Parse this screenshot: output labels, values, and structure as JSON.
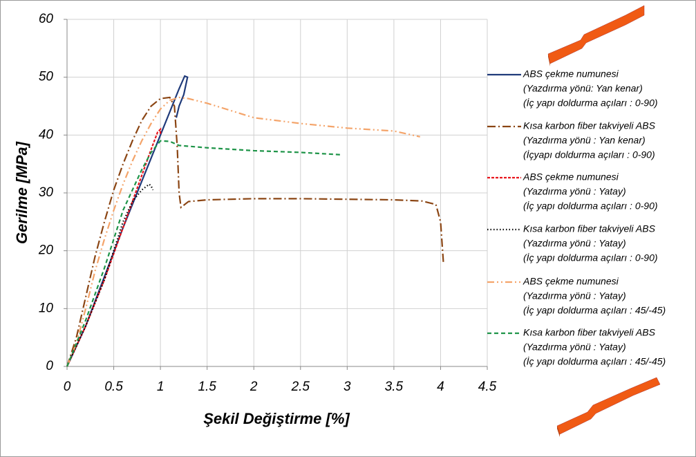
{
  "chart_data": {
    "type": "line",
    "x_label": "Şekil Değiştirme [%]",
    "y_label": "Gerilme  [MPa]",
    "xlim": [
      0,
      4.5
    ],
    "xticks": [
      0,
      0.5,
      1,
      1.5,
      2,
      2.5,
      3,
      3.5,
      4,
      4.5
    ],
    "ylim": [
      0,
      60
    ],
    "yticks": [
      0,
      10,
      20,
      30,
      40,
      50,
      60
    ],
    "grid": true,
    "legend": "right",
    "series": [
      {
        "name": "ABS çekme numunesi",
        "details": [
          "(Yazdırma yönü: Yan kenar)",
          "(İç yapı doldurma açıları : 0-90)"
        ],
        "color": "#1f3a7a",
        "dash": "none",
        "x": [
          0,
          0.2,
          0.4,
          0.6,
          0.8,
          1.0,
          1.1,
          1.2,
          1.26,
          1.29,
          1.25,
          1.2,
          1.17
        ],
        "values": [
          0,
          7,
          15.5,
          24,
          32,
          40,
          44,
          48,
          50.2,
          50,
          47,
          45,
          43
        ]
      },
      {
        "name": "Kısa karbon fiber takviyeli ABS",
        "details": [
          "(Yazdırma yönü : Yan kenar)",
          "(İçyapı doldurma açıları : 0-90)"
        ],
        "color": "#8b4513",
        "dash": "12,4,2,4",
        "x": [
          0,
          0.1,
          0.2,
          0.3,
          0.4,
          0.5,
          0.6,
          0.7,
          0.8,
          0.9,
          1.0,
          1.1,
          1.15,
          1.18,
          1.2,
          1.22,
          1.3,
          1.5,
          2,
          2.5,
          3,
          3.5,
          3.8,
          3.95,
          4.0,
          4.03
        ],
        "values": [
          0,
          5,
          12,
          19,
          25,
          30.5,
          35,
          39,
          42.5,
          45,
          46.3,
          46.5,
          45,
          38,
          30,
          27.5,
          28.5,
          28.8,
          29,
          29,
          28.9,
          28.8,
          28.6,
          28,
          25,
          18
        ]
      },
      {
        "name": "ABS   çekme numunesi",
        "details": [
          "(Yazdırma yönü : Yatay)",
          "(İç yapı doldurma açıları : 0-90)"
        ],
        "color": "#e8141c",
        "dash": "4,2",
        "x": [
          0,
          0.2,
          0.4,
          0.6,
          0.8,
          0.9,
          0.97,
          1.0,
          1.0
        ],
        "values": [
          0,
          7,
          15,
          24,
          33,
          37.5,
          40.5,
          41,
          40
        ]
      },
      {
        "name": "Kısa karbon fiber takviyeli ABS",
        "details": [
          "(Yazdırma yönü : Yatay)",
          "(İç yapı doldurma açıları : 0-90)"
        ],
        "color": "#000000",
        "dash": "1.5,3",
        "x": [
          0,
          0.2,
          0.4,
          0.5,
          0.6,
          0.7,
          0.8,
          0.88,
          0.9,
          0.92
        ],
        "values": [
          0,
          7,
          15,
          20,
          25,
          28.5,
          30.5,
          31.5,
          31.2,
          30.5
        ]
      },
      {
        "name": "ABS çekme numunesi",
        "details": [
          "(Yazdırma yönü : Yatay)",
          "(İç yapı doldurma açıları : 45/-45)"
        ],
        "color": "#f4a46a",
        "dash": "10,4,2,4,2,4",
        "x": [
          0,
          0.1,
          0.2,
          0.3,
          0.4,
          0.5,
          0.6,
          0.7,
          0.8,
          0.9,
          1.0,
          1.1,
          1.2,
          1.3,
          1.5,
          2,
          2.5,
          3,
          3.5,
          3.78
        ],
        "values": [
          0,
          4,
          10,
          16.5,
          22,
          27,
          31.5,
          35.5,
          39,
          42,
          44.5,
          46,
          46.5,
          46.3,
          45.5,
          43,
          42,
          41.2,
          40.7,
          39.7
        ]
      },
      {
        "name": "Kısa karbon fiber takviyeli ABS",
        "details": [
          "(Yazdırma yönü : Yatay)",
          "(İç yapı doldurma açıları : 45/-45)"
        ],
        "color": "#1e9448",
        "dash": "6,4",
        "x": [
          0,
          0.2,
          0.4,
          0.6,
          0.8,
          0.9,
          1.0,
          1.1,
          1.2,
          1.5,
          2,
          2.5,
          2.93
        ],
        "values": [
          0,
          8,
          17,
          27,
          34,
          37,
          39,
          38.9,
          38.2,
          37.8,
          37.3,
          37,
          36.6
        ]
      }
    ]
  }
}
